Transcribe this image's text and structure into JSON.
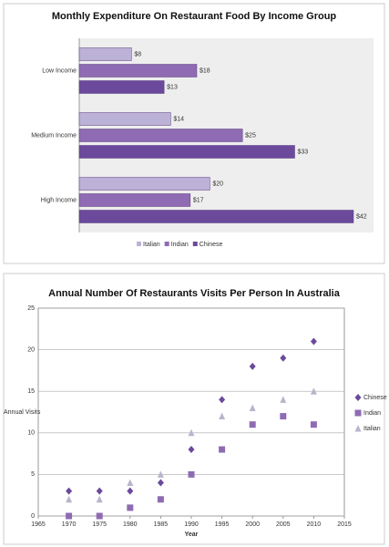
{
  "chart_data": [
    {
      "type": "bar",
      "orientation": "horizontal",
      "title": "Monthly Expenditure On Restaurant Food By Income Group",
      "categories": [
        "Low Income",
        "Medium Income",
        "High Income"
      ],
      "series": [
        {
          "name": "Italian",
          "color": "#bcb1d6",
          "values": [
            8,
            14,
            20
          ],
          "value_labels": [
            "$8",
            "$14",
            "$20"
          ]
        },
        {
          "name": "Indian",
          "color": "#8f6bb3",
          "values": [
            18,
            25,
            17
          ],
          "value_labels": [
            "$18",
            "$25",
            "$17"
          ]
        },
        {
          "name": "Chinese",
          "color": "#6b4a9c",
          "values": [
            13,
            33,
            42
          ],
          "value_labels": [
            "$13",
            "$33",
            "$42"
          ]
        }
      ],
      "legend": "bottom"
    },
    {
      "type": "scatter",
      "title": "Annual Number Of Restaurants Visits Per Person In Australia",
      "x_label": "Year",
      "y_label": "Annual Visits",
      "x": [
        1970,
        1975,
        1980,
        1985,
        1990,
        1995,
        2000,
        2005,
        2010
      ],
      "series": [
        {
          "name": "Chinese",
          "color": "#6b4a9c",
          "marker": "diamond",
          "values": [
            3,
            3,
            3,
            4,
            8,
            14,
            18,
            19,
            21
          ]
        },
        {
          "name": "Indian",
          "color": "#8f6bb3",
          "marker": "square",
          "values": [
            0,
            0,
            1,
            2,
            5,
            8,
            11,
            12,
            11
          ]
        },
        {
          "name": "Italian",
          "color": "#bab4cc",
          "marker": "triangle",
          "values": [
            2,
            2,
            4,
            5,
            10,
            12,
            13,
            14,
            15
          ]
        }
      ],
      "xlim": [
        1965,
        2015
      ],
      "xticks": [
        1965,
        1970,
        1975,
        1980,
        1985,
        1990,
        1995,
        2000,
        2005,
        2010,
        2015
      ],
      "ylim": [
        0,
        25
      ],
      "yticks": [
        0,
        5,
        10,
        15,
        20,
        25
      ],
      "grid": true,
      "legend": "right"
    }
  ]
}
